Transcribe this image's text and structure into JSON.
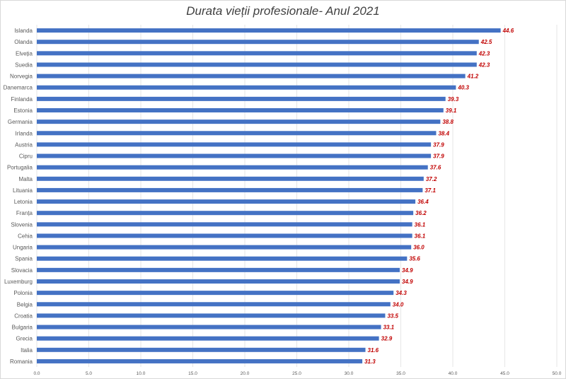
{
  "chart_data": {
    "type": "bar",
    "orientation": "horizontal",
    "title": "Durata vieții profesionale- Anul 2021",
    "xlabel": "",
    "ylabel": "",
    "xlim": [
      0,
      50
    ],
    "xticks": [
      "0.0",
      "5.0",
      "10.0",
      "15.0",
      "20.0",
      "25.0",
      "30.0",
      "35.0",
      "40.0",
      "45.0",
      "50.0"
    ],
    "grid": true,
    "legend": "none",
    "bar_color": "#4472c4",
    "label_color": "#c00000",
    "categories": [
      "Islanda",
      "Olanda",
      "Elveția",
      "Suedia",
      "Norvegia",
      "Danemarca",
      "Finlanda",
      "Estonia",
      "Germania",
      "Irlanda",
      "Austria",
      "Cipru",
      "Portugalia",
      "Malta",
      "Lituania",
      "Letonia",
      "Franța",
      "Slovenia",
      "Cehia",
      "Ungaria",
      "Spania",
      "Slovacia",
      "Luxemburg",
      "Polonia",
      "Belgia",
      "Croatia",
      "Bulgaria",
      "Grecia",
      "Italia",
      "Romania"
    ],
    "values": [
      44.6,
      42.5,
      42.3,
      42.3,
      41.2,
      40.3,
      39.3,
      39.1,
      38.8,
      38.4,
      37.9,
      37.9,
      37.6,
      37.2,
      37.1,
      36.4,
      36.2,
      36.1,
      36.1,
      36.0,
      35.6,
      34.9,
      34.9,
      34.3,
      34.0,
      33.5,
      33.1,
      32.9,
      31.6,
      31.3
    ]
  }
}
